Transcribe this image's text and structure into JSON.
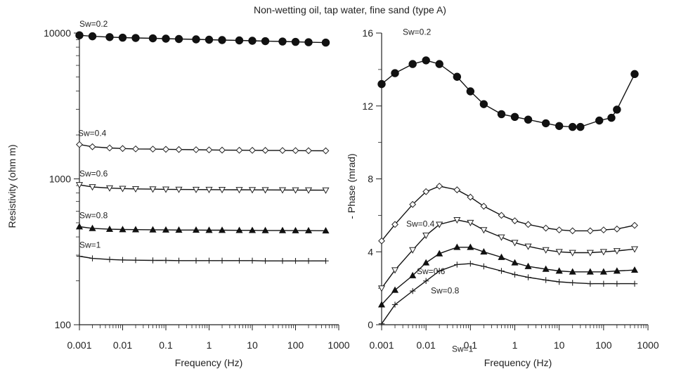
{
  "title": "Non-wetting oil, tap water, fine sand (type A)",
  "chart_data": [
    {
      "type": "line",
      "panel": "left",
      "xlabel": "Frequency (Hz)",
      "ylabel": "Resistivity (ohm m)",
      "x_scale": "log",
      "y_scale": "log",
      "xlim": [
        0.001,
        1000
      ],
      "ylim": [
        100,
        10000
      ],
      "x_ticks": [
        "0.001",
        "0.01",
        "0.1",
        "1",
        "10",
        "100",
        "1000"
      ],
      "y_ticks": [
        "100",
        "1000",
        "10000"
      ],
      "x": [
        0.001,
        0.002,
        0.005,
        0.01,
        0.02,
        0.05,
        0.1,
        0.2,
        0.5,
        1,
        2,
        5,
        10,
        20,
        50,
        100,
        200,
        500
      ],
      "series": [
        {
          "name": "Sw=0.2",
          "marker": "filled-circle",
          "values": [
            9650,
            9500,
            9380,
            9300,
            9250,
            9200,
            9150,
            9100,
            9050,
            9000,
            8950,
            8900,
            8850,
            8800,
            8750,
            8700,
            8650,
            8600
          ]
        },
        {
          "name": "Sw=0.4",
          "marker": "open-diamond",
          "values": [
            1720,
            1660,
            1630,
            1615,
            1605,
            1600,
            1595,
            1590,
            1585,
            1580,
            1575,
            1572,
            1570,
            1568,
            1565,
            1563,
            1560,
            1558
          ]
        },
        {
          "name": "Sw=0.6",
          "marker": "open-triangle-down",
          "values": [
            910,
            880,
            865,
            858,
            853,
            850,
            848,
            846,
            845,
            844,
            843,
            842,
            841,
            840,
            839,
            838,
            837,
            836
          ]
        },
        {
          "name": "Sw=0.8",
          "marker": "filled-triangle-up",
          "values": [
            470,
            458,
            452,
            450,
            449,
            448,
            447,
            446,
            446,
            445,
            445,
            444,
            444,
            443,
            443,
            442,
            442,
            441
          ]
        },
        {
          "name": "Sw=1",
          "marker": "plus",
          "values": [
            295,
            285,
            280,
            278,
            277,
            276,
            276,
            275,
            275,
            275,
            275,
            275,
            275,
            274,
            274,
            274,
            274,
            274
          ]
        }
      ]
    },
    {
      "type": "line",
      "panel": "right",
      "xlabel": "Frequency (Hz)",
      "ylabel": "- Phase (mrad)",
      "x_scale": "log",
      "y_scale": "linear",
      "xlim": [
        0.001,
        1000
      ],
      "ylim": [
        0,
        16
      ],
      "x_ticks": [
        "0.001",
        "0.01",
        "0.1",
        "1",
        "10",
        "100",
        "1000"
      ],
      "y_ticks": [
        "0",
        "4",
        "8",
        "12",
        "16"
      ],
      "series": [
        {
          "name": "Sw=0.2",
          "marker": "filled-circle",
          "x": [
            0.001,
            0.002,
            0.005,
            0.01,
            0.02,
            0.05,
            0.1,
            0.2,
            0.5,
            1,
            2,
            5,
            10,
            20,
            30,
            80,
            150,
            200,
            500
          ],
          "values": [
            13.2,
            13.8,
            14.3,
            14.5,
            14.3,
            13.6,
            12.8,
            12.1,
            11.55,
            11.4,
            11.25,
            11.05,
            10.9,
            10.85,
            10.85,
            11.2,
            11.35,
            11.8,
            13.75
          ]
        },
        {
          "name": "Sw=0.4",
          "marker": "open-diamond",
          "x": [
            0.001,
            0.002,
            0.005,
            0.01,
            0.02,
            0.05,
            0.1,
            0.2,
            0.5,
            1,
            2,
            5,
            10,
            20,
            50,
            100,
            200,
            500
          ],
          "values": [
            4.6,
            5.5,
            6.6,
            7.3,
            7.6,
            7.4,
            7.0,
            6.5,
            6.0,
            5.7,
            5.5,
            5.3,
            5.2,
            5.15,
            5.15,
            5.2,
            5.25,
            5.45
          ]
        },
        {
          "name": "Sw=0.6",
          "marker": "open-triangle-down",
          "x": [
            0.001,
            0.002,
            0.005,
            0.01,
            0.02,
            0.05,
            0.1,
            0.2,
            0.5,
            1,
            2,
            5,
            10,
            20,
            50,
            100,
            200,
            500
          ],
          "values": [
            2.0,
            3.0,
            4.1,
            4.9,
            5.5,
            5.75,
            5.6,
            5.2,
            4.8,
            4.5,
            4.3,
            4.1,
            4.0,
            3.95,
            3.95,
            4.0,
            4.05,
            4.15
          ]
        },
        {
          "name": "Sw=0.8",
          "marker": "filled-triangle-up",
          "x": [
            0.001,
            0.002,
            0.005,
            0.01,
            0.02,
            0.05,
            0.1,
            0.2,
            0.5,
            1,
            2,
            5,
            10,
            20,
            50,
            100,
            200,
            500
          ],
          "values": [
            1.1,
            1.9,
            2.7,
            3.4,
            3.9,
            4.25,
            4.25,
            4.0,
            3.7,
            3.4,
            3.2,
            3.05,
            2.95,
            2.9,
            2.9,
            2.9,
            2.95,
            3.0
          ]
        },
        {
          "name": "Sw=1",
          "marker": "plus",
          "x": [
            0.001,
            0.002,
            0.005,
            0.01,
            0.02,
            0.05,
            0.1,
            0.2,
            0.5,
            1,
            2,
            5,
            10,
            20,
            50,
            100,
            200,
            500
          ],
          "values": [
            0.05,
            1.1,
            1.85,
            2.4,
            2.95,
            3.3,
            3.35,
            3.2,
            2.95,
            2.75,
            2.6,
            2.45,
            2.35,
            2.3,
            2.25,
            2.25,
            2.25,
            2.25
          ]
        }
      ]
    }
  ]
}
